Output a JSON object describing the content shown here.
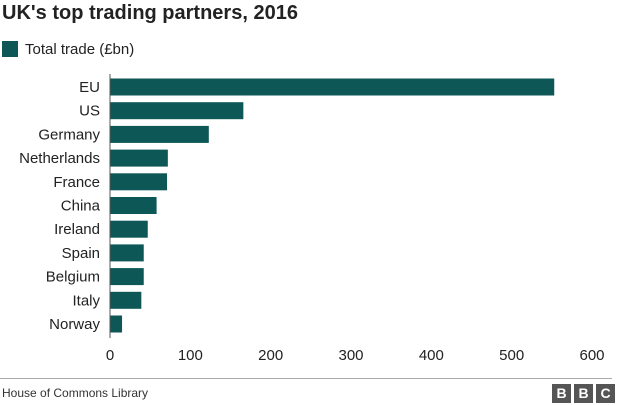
{
  "title": "UK's top trading partners, 2016",
  "legend": {
    "label": "Total trade (£bn)"
  },
  "colors": {
    "bar": "#0d5756",
    "text": "#222222",
    "axis": "#555555"
  },
  "chart_data": {
    "type": "bar",
    "orientation": "horizontal",
    "categories": [
      "EU",
      "US",
      "Germany",
      "Netherlands",
      "France",
      "China",
      "Ireland",
      "Spain",
      "Belgium",
      "Italy",
      "Norway"
    ],
    "series": [
      {
        "name": "Total trade (£bn)",
        "values": [
          553,
          166,
          123,
          72,
          71,
          58,
          47,
          42,
          42,
          39,
          15
        ]
      }
    ],
    "xlim": [
      0,
      600
    ],
    "xticks": [
      0,
      100,
      200,
      300,
      400,
      500,
      600
    ],
    "grid": false,
    "legend_position": "top-left"
  },
  "footer": {
    "source": "House of Commons Library",
    "logo": [
      "B",
      "B",
      "C"
    ]
  }
}
